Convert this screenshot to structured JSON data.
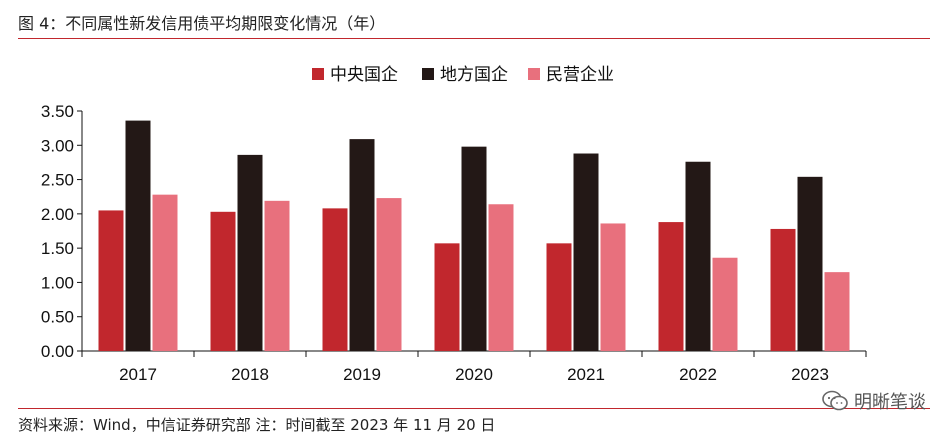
{
  "figure": {
    "title": "图 4：不同属性新发信用债平均期限变化情况（年）",
    "source": "资料来源：Wind，中信证券研究部  注：时间截至 2023 年 11 月 20 日",
    "watermark": "明晰笔谈",
    "watermark_icon": "wechat-icon"
  },
  "chart_data": {
    "type": "bar",
    "title": "",
    "xlabel": "",
    "ylabel": "",
    "categories": [
      "2017",
      "2018",
      "2019",
      "2020",
      "2021",
      "2022",
      "2023"
    ],
    "series": [
      {
        "name": "中央国企",
        "color": "#c1272d",
        "values": [
          2.05,
          2.03,
          2.08,
          1.57,
          1.57,
          1.88,
          1.78
        ]
      },
      {
        "name": "地方国企",
        "color": "#231816",
        "values": [
          3.36,
          2.86,
          3.09,
          2.98,
          2.88,
          2.76,
          2.54
        ]
      },
      {
        "name": "民营企业",
        "color": "#e8707d",
        "values": [
          2.28,
          2.19,
          2.23,
          2.14,
          1.86,
          1.36,
          1.15
        ]
      }
    ],
    "ylim": [
      0,
      3.5
    ],
    "yticks": [
      "0.00",
      "0.50",
      "1.00",
      "1.50",
      "2.00",
      "2.50",
      "3.00",
      "3.50"
    ],
    "grid": false,
    "legend_position": "top-center"
  }
}
